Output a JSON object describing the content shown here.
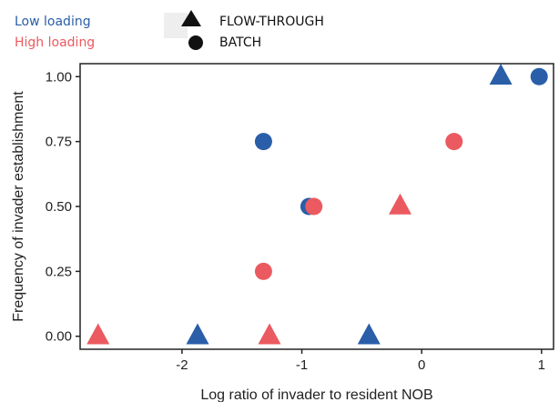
{
  "chart_data": {
    "type": "scatter",
    "xlabel": "Log ratio of invader to resident NOB",
    "ylabel": "Frequency of invader establishment",
    "xlim": [
      -2.85,
      1.1
    ],
    "ylim": [
      -0.05,
      1.05
    ],
    "x_ticks": [
      -2,
      -1,
      0,
      1
    ],
    "x_tick_labels": [
      "-2",
      "-1",
      "0",
      "1"
    ],
    "y_ticks": [
      0,
      0.25,
      0.5,
      0.75,
      1.0
    ],
    "y_tick_labels": [
      "0.00",
      "0.25",
      "0.50",
      "0.75",
      "1.00"
    ],
    "grid": false,
    "colors": {
      "low": "#2a5ea8",
      "high": "#ea5a60"
    },
    "legend": {
      "color_entries": [
        {
          "key": "low",
          "label": "Low loading"
        },
        {
          "key": "high",
          "label": "High loading"
        }
      ],
      "shape_entries": [
        {
          "shape": "triangle",
          "label": "FLOW-THROUGH"
        },
        {
          "shape": "circle",
          "label": "BATCH"
        }
      ]
    },
    "points": [
      {
        "x": -2.7,
        "y": 0.0,
        "shape": "triangle",
        "color": "high"
      },
      {
        "x": -1.87,
        "y": 0.0,
        "shape": "triangle",
        "color": "low"
      },
      {
        "x": -1.27,
        "y": 0.0,
        "shape": "triangle",
        "color": "high"
      },
      {
        "x": -0.44,
        "y": 0.0,
        "shape": "triangle",
        "color": "low"
      },
      {
        "x": -1.32,
        "y": 0.25,
        "shape": "circle",
        "color": "high"
      },
      {
        "x": -0.94,
        "y": 0.5,
        "shape": "circle",
        "color": "low"
      },
      {
        "x": -0.9,
        "y": 0.5,
        "shape": "circle",
        "color": "high"
      },
      {
        "x": -0.18,
        "y": 0.5,
        "shape": "triangle",
        "color": "high"
      },
      {
        "x": -1.32,
        "y": 0.75,
        "shape": "circle",
        "color": "low"
      },
      {
        "x": 0.27,
        "y": 0.75,
        "shape": "circle",
        "color": "high"
      },
      {
        "x": 0.66,
        "y": 1.0,
        "shape": "triangle",
        "color": "low"
      },
      {
        "x": 0.98,
        "y": 1.0,
        "shape": "circle",
        "color": "low"
      }
    ]
  }
}
